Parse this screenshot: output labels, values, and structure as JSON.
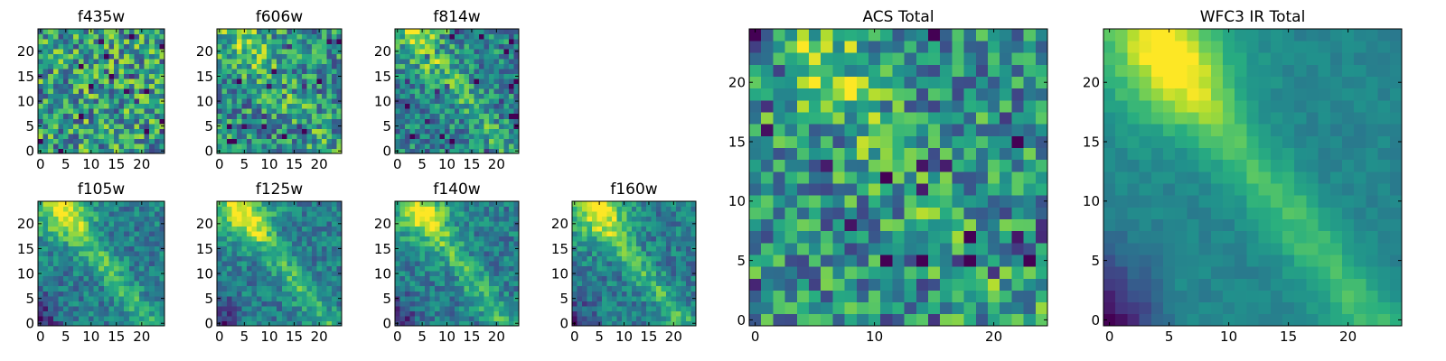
{
  "chart_data": [
    {
      "type": "heatmap",
      "title": "f435w",
      "size": 25,
      "xticks": [
        0,
        5,
        10,
        15,
        20
      ],
      "yticks": [
        0,
        5,
        10,
        15,
        20
      ],
      "pattern": "noise"
    },
    {
      "type": "heatmap",
      "title": "f606w",
      "size": 25,
      "xticks": [
        0,
        5,
        10,
        15,
        20
      ],
      "yticks": [
        0,
        5,
        10,
        15,
        20
      ],
      "pattern": "noise-weak-ridge"
    },
    {
      "type": "heatmap",
      "title": "f814w",
      "size": 25,
      "xticks": [
        0,
        5,
        10,
        15,
        20
      ],
      "yticks": [
        0,
        5,
        10,
        15,
        20
      ],
      "pattern": "noise-ridge"
    },
    {
      "type": "heatmap",
      "title": "f105w",
      "size": 25,
      "xticks": [
        0,
        5,
        10,
        15,
        20
      ],
      "yticks": [
        0,
        5,
        10,
        15,
        20
      ],
      "pattern": "ridge"
    },
    {
      "type": "heatmap",
      "title": "f125w",
      "size": 25,
      "xticks": [
        0,
        5,
        10,
        15,
        20
      ],
      "yticks": [
        0,
        5,
        10,
        15,
        20
      ],
      "pattern": "ridge"
    },
    {
      "type": "heatmap",
      "title": "f140w",
      "size": 25,
      "xticks": [
        0,
        5,
        10,
        15,
        20
      ],
      "yticks": [
        0,
        5,
        10,
        15,
        20
      ],
      "pattern": "ridge"
    },
    {
      "type": "heatmap",
      "title": "f160w",
      "size": 25,
      "xticks": [
        0,
        5,
        10,
        15,
        20
      ],
      "yticks": [
        0,
        5,
        10,
        15,
        20
      ],
      "pattern": "ridge"
    },
    {
      "type": "heatmap",
      "title": "ACS Total",
      "size": 25,
      "xticks": [
        0,
        10,
        20
      ],
      "yticks": [
        0,
        5,
        10,
        15,
        20
      ],
      "pattern": "noise-weak-ridge"
    },
    {
      "type": "heatmap",
      "title": "WFC3 IR Total",
      "size": 25,
      "xticks": [
        0,
        5,
        10,
        15,
        20
      ],
      "yticks": [
        0,
        5,
        10,
        15,
        20
      ],
      "pattern": "smooth-ridge"
    }
  ],
  "colormap": [
    "#440154",
    "#472d7b",
    "#3b528b",
    "#2c728e",
    "#21918c",
    "#28ae80",
    "#5ec962",
    "#addc30",
    "#fde725"
  ]
}
